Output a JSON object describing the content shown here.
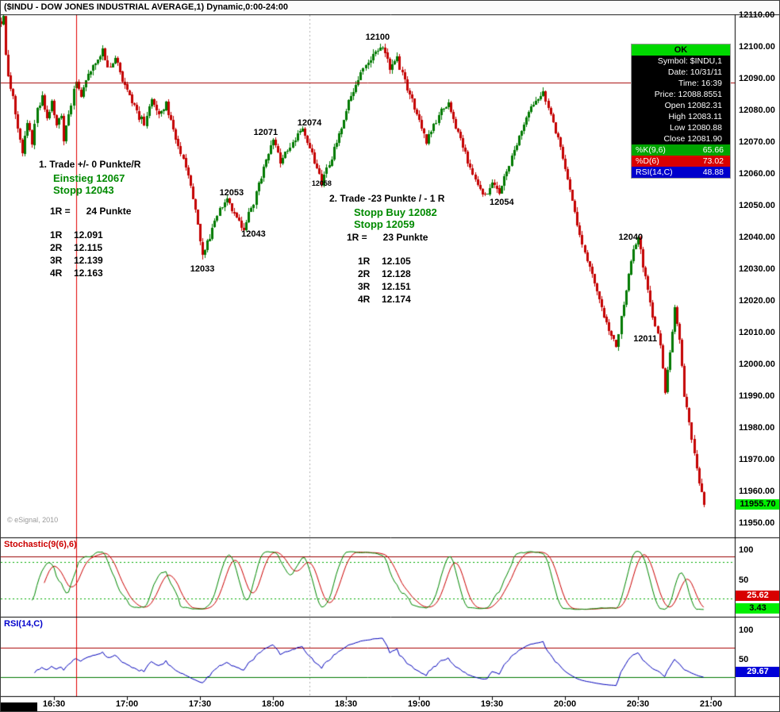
{
  "title": "($INDU - DOW JONES INDUSTRIAL AVERAGE,1) Dynamic,0:00-24:00",
  "colors": {
    "up": "#007a00",
    "down": "#c40000",
    "crosshair_v": "#e10000",
    "crosshair_h": "#a40000",
    "stoch_k": "#008800",
    "stoch_d": "#cc0000",
    "rsi_line": "#0000bb",
    "stoch_alert": "#990000",
    "band_green": "#00aa00",
    "rsi_upper": "#aa0000",
    "rsi_lower": "#007700",
    "session_break": "#b0b0b0",
    "last_badge_bg": "#00ef00"
  },
  "price_axis": {
    "labels": [
      "12110.00",
      "12100.00",
      "12090.00",
      "12080.00",
      "12070.00",
      "12060.00",
      "12050.00",
      "12040.00",
      "12030.00",
      "12020.00",
      "12010.00",
      "12000.00",
      "11990.00",
      "11980.00",
      "11970.00",
      "11960.00",
      "11950.00"
    ],
    "last_price": "11955.70"
  },
  "time_axis": {
    "labels": [
      "16:30",
      "17:00",
      "17:30",
      "18:00",
      "18:30",
      "19:00",
      "19:30",
      "20:00",
      "20:30",
      "21:00"
    ]
  },
  "data_window": {
    "ok_label": "OK",
    "rows": [
      "Symbol: $INDU,1",
      "Date: 10/31/11",
      "Time: 16:39",
      "Price: 12088.8551",
      "Open 12082.31",
      "High 12083.11",
      "Low 12080.88",
      "Close 12081.90"
    ],
    "k_row": {
      "name": "%K(9,6)",
      "value": "65.66"
    },
    "d_row": {
      "name": "%D(6)",
      "value": "73.02"
    },
    "rsi_row": {
      "name": "RSI(14,C)",
      "value": "48.88"
    }
  },
  "stoch_panel": {
    "label": "Stochastic(9(6),6)",
    "scale": [
      "100",
      "50"
    ],
    "d_badge": "25.62",
    "k_badge": "3.43"
  },
  "rsi_panel": {
    "label": "RSI(14,C)",
    "scale": [
      "100",
      "50"
    ],
    "badge": "29.67"
  },
  "annotations": {
    "trade1": {
      "title": "1. Trade +/- 0 Punkte/R",
      "entry": "Einstieg 12067",
      "stop": "Stopp 12043",
      "risk": "1R =      24 Punkte",
      "targets": [
        [
          "1R",
          "12.091"
        ],
        [
          "2R",
          "12.115"
        ],
        [
          "3R",
          "12.139"
        ],
        [
          "4R",
          "12.163"
        ]
      ]
    },
    "trade2": {
      "title": "2. Trade -23 Punkte / - 1 R",
      "entry": "Stopp Buy 12082",
      "stop": "Stopp 12059",
      "risk": "1R =      23 Punkte",
      "targets": [
        [
          "1R",
          "12.105"
        ],
        [
          "2R",
          "12.128"
        ],
        [
          "3R",
          "12.151"
        ],
        [
          "4R",
          "12.174"
        ]
      ]
    },
    "copyright": "© eSignal, 2010"
  },
  "chart_data": {
    "type": "candlestick",
    "symbol": "$INDU",
    "title": "DOW JONES INDUSTRIAL AVERAGE, 1-minute bars",
    "session_start": "16:08",
    "session_end": "20:57",
    "session_break": "18:15",
    "x_ticks": [
      "16:30",
      "17:00",
      "17:30",
      "18:00",
      "18:30",
      "19:00",
      "19:30",
      "20:00",
      "20:30",
      "21:00"
    ],
    "y_range": [
      11950,
      12110
    ],
    "y_tick_step": 10,
    "last_price": 11955.7,
    "crosshair": {
      "date": "10/31/11",
      "time": "16:39",
      "price": 12088.8551,
      "open": 12082.31,
      "high": 12083.11,
      "low": 12080.88,
      "close": 12081.9
    },
    "price_path": [
      [
        "16:08",
        12108
      ],
      [
        "16:09",
        12110
      ],
      [
        "16:10",
        12097
      ],
      [
        "16:11",
        12091
      ],
      [
        "16:13",
        12084
      ],
      [
        "16:15",
        12074
      ],
      [
        "16:17",
        12067
      ],
      [
        "16:19",
        12076
      ],
      [
        "16:21",
        12070
      ],
      [
        "16:23",
        12080
      ],
      [
        "16:25",
        12084
      ],
      [
        "16:27",
        12077
      ],
      [
        "16:29",
        12082
      ],
      [
        "16:31",
        12076
      ],
      [
        "16:33",
        12079
      ],
      [
        "16:34",
        12070
      ],
      [
        "16:36",
        12079
      ],
      [
        "16:38",
        12086
      ],
      [
        "16:39",
        12089
      ],
      [
        "16:41",
        12085
      ],
      [
        "16:44",
        12092
      ],
      [
        "16:47",
        12095
      ],
      [
        "16:50",
        12099
      ],
      [
        "16:52",
        12093
      ],
      [
        "16:55",
        12097
      ],
      [
        "16:58",
        12090
      ],
      [
        "17:01",
        12085
      ],
      [
        "17:04",
        12079
      ],
      [
        "17:07",
        12076
      ],
      [
        "17:10",
        12083
      ],
      [
        "17:13",
        12079
      ],
      [
        "17:16",
        12082
      ],
      [
        "17:19",
        12074
      ],
      [
        "17:22",
        12066
      ],
      [
        "17:25",
        12060
      ],
      [
        "17:28",
        12048
      ],
      [
        "17:31",
        12034
      ],
      [
        "17:33",
        12038
      ],
      [
        "17:35",
        12043
      ],
      [
        "17:38",
        12049
      ],
      [
        "17:41",
        12053
      ],
      [
        "17:44",
        12047
      ],
      [
        "17:48",
        12043
      ],
      [
        "17:52",
        12051
      ],
      [
        "17:55",
        12059
      ],
      [
        "17:58",
        12067
      ],
      [
        "18:00",
        12071
      ],
      [
        "18:03",
        12064
      ],
      [
        "18:06",
        12068
      ],
      [
        "18:09",
        12071
      ],
      [
        "18:12",
        12074
      ],
      [
        "18:15",
        12069
      ],
      [
        "18:18",
        12061
      ],
      [
        "18:20",
        12057
      ],
      [
        "18:23",
        12063
      ],
      [
        "18:26",
        12070
      ],
      [
        "18:29",
        12078
      ],
      [
        "18:32",
        12085
      ],
      [
        "18:35",
        12090
      ],
      [
        "18:38",
        12094
      ],
      [
        "18:41",
        12097
      ],
      [
        "18:45",
        12100
      ],
      [
        "18:48",
        12093
      ],
      [
        "18:51",
        12096
      ],
      [
        "18:54",
        12089
      ],
      [
        "18:57",
        12083
      ],
      [
        "19:00",
        12077
      ],
      [
        "19:03",
        12070
      ],
      [
        "19:06",
        12075
      ],
      [
        "19:09",
        12080
      ],
      [
        "19:12",
        12082
      ],
      [
        "19:15",
        12075
      ],
      [
        "19:18",
        12068
      ],
      [
        "19:21",
        12062
      ],
      [
        "19:24",
        12057
      ],
      [
        "19:27",
        12053
      ],
      [
        "19:30",
        12058
      ],
      [
        "19:33",
        12054
      ],
      [
        "19:36",
        12061
      ],
      [
        "19:39",
        12067
      ],
      [
        "19:42",
        12073
      ],
      [
        "19:45",
        12079
      ],
      [
        "19:48",
        12083
      ],
      [
        "19:51",
        12086
      ],
      [
        "19:54",
        12079
      ],
      [
        "19:57",
        12071
      ],
      [
        "20:00",
        12061
      ],
      [
        "20:03",
        12051
      ],
      [
        "20:06",
        12041
      ],
      [
        "20:09",
        12033
      ],
      [
        "20:12",
        12026
      ],
      [
        "20:15",
        12018
      ],
      [
        "20:18",
        12010
      ],
      [
        "20:21",
        12006
      ],
      [
        "20:24",
        12019
      ],
      [
        "20:27",
        12033
      ],
      [
        "20:30",
        12040
      ],
      [
        "20:33",
        12027
      ],
      [
        "20:36",
        12015
      ],
      [
        "20:39",
        12007
      ],
      [
        "20:41",
        11991
      ],
      [
        "20:43",
        12004
      ],
      [
        "20:45",
        12018
      ],
      [
        "20:47",
        12008
      ],
      [
        "20:49",
        11990
      ],
      [
        "20:51",
        11982
      ],
      [
        "20:53",
        11972
      ],
      [
        "20:55",
        11963
      ],
      [
        "20:57",
        11955.7
      ]
    ],
    "swing_labels": [
      {
        "text": "12100",
        "time": "18:43",
        "price": 12103
      },
      {
        "text": "12071",
        "time": "17:57",
        "price": 12073
      },
      {
        "text": "12074",
        "time": "18:15",
        "price": 12076
      },
      {
        "text": "12053",
        "time": "17:43",
        "price": 12054
      },
      {
        "text": "12043",
        "time": "17:52",
        "price": 12041
      },
      {
        "text": "12058",
        "time": "18:20",
        "price": 12057,
        "small": true
      },
      {
        "text": "12033",
        "time": "17:31",
        "price": 12030
      },
      {
        "text": "12054",
        "time": "19:34",
        "price": 12051
      },
      {
        "text": "12040",
        "time": "20:27",
        "price": 12040
      },
      {
        "text": "12011",
        "time": "20:33",
        "price": 12008
      }
    ],
    "indicators": {
      "stochastic": {
        "name": "Stochastic(9(6),6)",
        "k": "%K(9,6)",
        "d": "%D(6)",
        "scale": [
          0,
          100
        ],
        "overbought": 80,
        "oversold": 20,
        "alert": 90,
        "last_k": 3.43,
        "last_d": 25.62,
        "at_crosshair_k": 65.66,
        "at_crosshair_d": 73.02
      },
      "rsi": {
        "name": "RSI(14,C)",
        "scale": [
          0,
          100
        ],
        "upper": 70,
        "lower": 20,
        "last": 29.67,
        "at_crosshair": 48.88
      }
    }
  }
}
